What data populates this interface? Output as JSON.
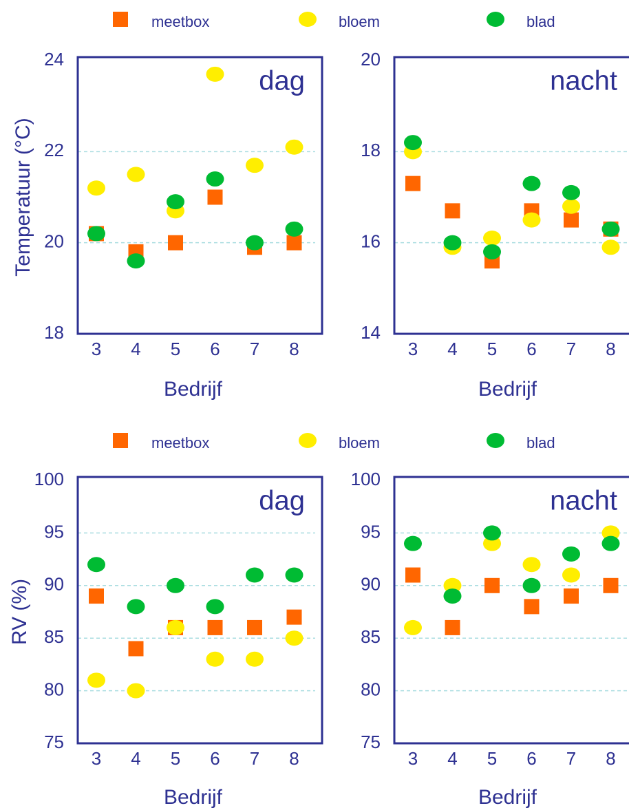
{
  "chart_data": [
    {
      "type": "scatter",
      "title": "dag",
      "y_label": "Temperatuur (°C)",
      "x_label": "Bedrijf",
      "categories": [
        "3",
        "4",
        "5",
        "6",
        "7",
        "8"
      ],
      "ylim": [
        18,
        24
      ],
      "yticks": [
        18,
        20,
        22,
        24
      ],
      "grid": true,
      "series": [
        {
          "name": "meetbox",
          "color": "#ff6600",
          "marker": "square",
          "values": [
            20.2,
            19.8,
            20.0,
            21.0,
            19.9,
            20.0
          ]
        },
        {
          "name": "bloem",
          "color": "#ffee00",
          "marker": "circle",
          "values": [
            21.2,
            21.5,
            20.7,
            23.7,
            21.7,
            22.1
          ]
        },
        {
          "name": "blad",
          "color": "#00bb33",
          "marker": "circle",
          "values": [
            20.2,
            19.6,
            20.9,
            21.4,
            20.0,
            20.3
          ]
        }
      ]
    },
    {
      "type": "scatter",
      "title": "nacht",
      "x_label": "Bedrijf",
      "categories": [
        "3",
        "4",
        "5",
        "6",
        "7",
        "8"
      ],
      "ylim": [
        14,
        20
      ],
      "yticks": [
        14,
        16,
        18,
        20
      ],
      "grid": true,
      "series": [
        {
          "name": "meetbox",
          "color": "#ff6600",
          "marker": "square",
          "values": [
            17.3,
            16.7,
            15.6,
            16.7,
            16.5,
            16.3
          ]
        },
        {
          "name": "bloem",
          "color": "#ffee00",
          "marker": "circle",
          "values": [
            18.0,
            15.9,
            16.1,
            16.5,
            16.8,
            15.9
          ]
        },
        {
          "name": "blad",
          "color": "#00bb33",
          "marker": "circle",
          "values": [
            18.2,
            16.0,
            15.8,
            17.3,
            17.1,
            16.3
          ]
        }
      ]
    },
    {
      "type": "scatter",
      "title": "dag",
      "y_label": "RV (%)",
      "x_label": "Bedrijf",
      "categories": [
        "3",
        "4",
        "5",
        "6",
        "7",
        "8"
      ],
      "ylim": [
        75,
        100
      ],
      "yticks": [
        75,
        80,
        85,
        90,
        95,
        100
      ],
      "grid": true,
      "series": [
        {
          "name": "meetbox",
          "color": "#ff6600",
          "marker": "square",
          "values": [
            89,
            84,
            86,
            86,
            86,
            87
          ]
        },
        {
          "name": "bloem",
          "color": "#ffee00",
          "marker": "circle",
          "values": [
            81,
            80,
            86,
            83,
            83,
            85
          ]
        },
        {
          "name": "blad",
          "color": "#00bb33",
          "marker": "circle",
          "values": [
            92,
            88,
            90,
            88,
            91,
            91
          ]
        }
      ]
    },
    {
      "type": "scatter",
      "title": "nacht",
      "x_label": "Bedrijf",
      "categories": [
        "3",
        "4",
        "5",
        "6",
        "7",
        "8"
      ],
      "ylim": [
        75,
        100
      ],
      "yticks": [
        75,
        80,
        85,
        90,
        95,
        100
      ],
      "grid": true,
      "series": [
        {
          "name": "meetbox",
          "color": "#ff6600",
          "marker": "square",
          "values": [
            91,
            86,
            90,
            88,
            89,
            90
          ]
        },
        {
          "name": "bloem",
          "color": "#ffee00",
          "marker": "circle",
          "values": [
            86,
            90,
            94,
            92,
            91,
            95
          ]
        },
        {
          "name": "blad",
          "color": "#00bb33",
          "marker": "circle",
          "values": [
            94,
            89,
            95,
            90,
            93,
            94
          ]
        }
      ]
    }
  ]
}
